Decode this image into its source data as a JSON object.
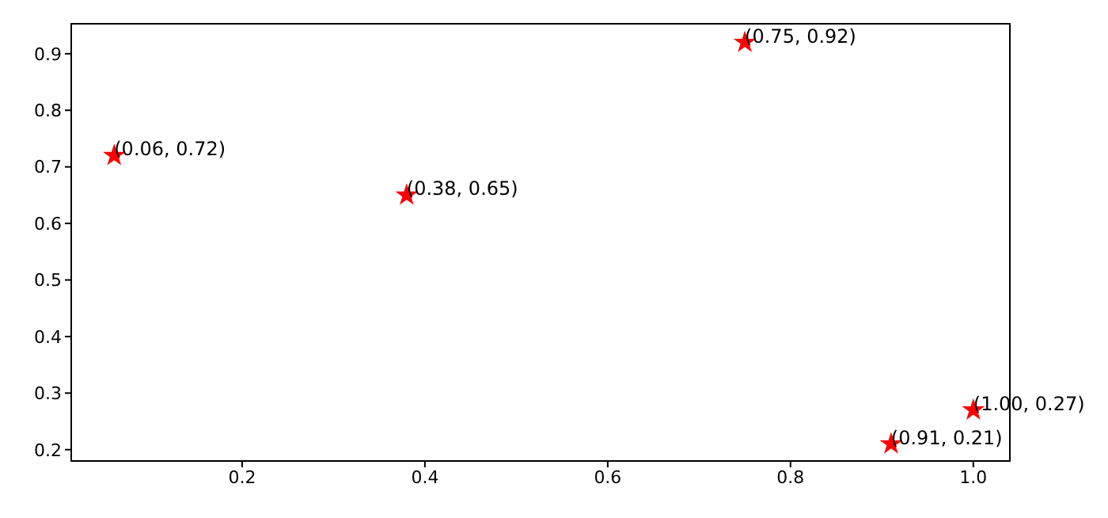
{
  "chart_data": {
    "type": "scatter",
    "x": [
      0.06,
      0.38,
      0.75,
      0.91,
      1.0
    ],
    "series": [
      {
        "color": "#ff0000",
        "values": [
          0.72,
          0.65,
          0.92,
          0.21,
          0.27
        ]
      }
    ],
    "marker": "star",
    "xlim": [
      0.013,
      1.04
    ],
    "xticks": [
      0.2,
      0.4,
      0.6,
      0.8,
      {
        "value": 1.0,
        "label": "1.0"
      }
    ],
    "ylim": [
      0.18,
      0.953
    ],
    "yticks": [
      0.2,
      0.3,
      0.4,
      0.5,
      0.6,
      0.7,
      0.8,
      0.9
    ],
    "annotations": [
      {
        "text": "(0.06, 0.72)",
        "x": 0.06,
        "y": 0.72
      },
      {
        "text": "(0.38, 0.65)",
        "x": 0.38,
        "y": 0.65
      },
      {
        "text": "(0.75, 0.92)",
        "x": 0.75,
        "y": 0.92
      },
      {
        "text": "(0.91, 0.21)",
        "x": 0.91,
        "y": 0.21
      },
      {
        "text": "(1.00, 0.27)",
        "x": 1.0,
        "y": 0.27
      }
    ]
  }
}
